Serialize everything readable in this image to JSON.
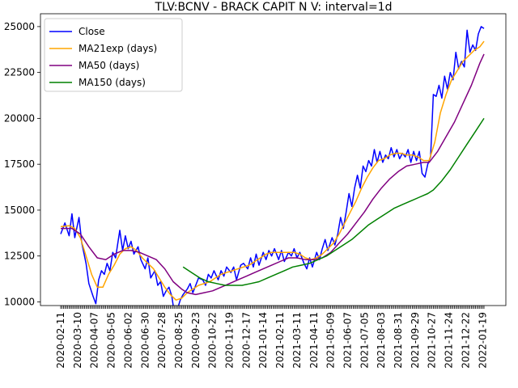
{
  "chart_data": {
    "type": "line",
    "title": "TLV:BCNV - BRACK CAPIT N V: interval=1d",
    "xlabel": "",
    "ylabel": "",
    "ylim": [
      9800,
      25700
    ],
    "grid": false,
    "legend_position": "top-left",
    "y_ticks": [
      {
        "value": 10000,
        "label": "10000"
      },
      {
        "value": 12500,
        "label": "12500"
      },
      {
        "value": 15000,
        "label": "15000"
      },
      {
        "value": 17500,
        "label": "17500"
      },
      {
        "value": 20000,
        "label": "20000"
      },
      {
        "value": 22500,
        "label": "22500"
      },
      {
        "value": 25000,
        "label": "25000"
      }
    ],
    "x_tick_labels": [
      "2020-02-11",
      "2020-03-10",
      "2020-04-07",
      "2020-05-05",
      "2020-06-02",
      "2020-06-30",
      "2020-07-28",
      "2020-08-25",
      "2020-09-23",
      "2020-10-22",
      "2020-11-19",
      "2020-12-17",
      "2021-01-14",
      "2021-02-11",
      "2021-03-11",
      "2021-04-11",
      "2021-05-09",
      "2021-06-07",
      "2021-07-05",
      "2021-08-03",
      "2021-08-31",
      "2021-09-29",
      "2021-10-27",
      "2021-11-24",
      "2021-12-22",
      "2022-01-19"
    ],
    "series": [
      {
        "name": "Close",
        "color": "#0000ff",
        "points": [
          [
            0,
            13700
          ],
          [
            3,
            14300
          ],
          [
            6,
            13600
          ],
          [
            8,
            14800
          ],
          [
            10,
            13500
          ],
          [
            13,
            14600
          ],
          [
            15,
            13200
          ],
          [
            18,
            12100
          ],
          [
            20,
            11000
          ],
          [
            23,
            10300
          ],
          [
            25,
            9900
          ],
          [
            27,
            11200
          ],
          [
            29,
            11700
          ],
          [
            31,
            11500
          ],
          [
            33,
            12100
          ],
          [
            35,
            11700
          ],
          [
            37,
            12700
          ],
          [
            39,
            12400
          ],
          [
            42,
            13900
          ],
          [
            44,
            12800
          ],
          [
            46,
            13600
          ],
          [
            48,
            12900
          ],
          [
            50,
            13300
          ],
          [
            52,
            12600
          ],
          [
            55,
            13000
          ],
          [
            57,
            12300
          ],
          [
            60,
            11800
          ],
          [
            62,
            12400
          ],
          [
            64,
            11300
          ],
          [
            67,
            11700
          ],
          [
            69,
            10900
          ],
          [
            71,
            11100
          ],
          [
            73,
            10300
          ],
          [
            75,
            10600
          ],
          [
            77,
            10800
          ],
          [
            79,
            10300
          ],
          [
            81,
            9300
          ],
          [
            83,
            9600
          ],
          [
            85,
            10100
          ],
          [
            87,
            10400
          ],
          [
            90,
            10700
          ],
          [
            92,
            11000
          ],
          [
            94,
            10500
          ],
          [
            96,
            10900
          ],
          [
            98,
            11300
          ],
          [
            101,
            11200
          ],
          [
            103,
            10900
          ],
          [
            105,
            11500
          ],
          [
            107,
            11300
          ],
          [
            109,
            11700
          ],
          [
            112,
            11200
          ],
          [
            114,
            11700
          ],
          [
            116,
            11400
          ],
          [
            118,
            11900
          ],
          [
            121,
            11600
          ],
          [
            123,
            11900
          ],
          [
            125,
            11200
          ],
          [
            128,
            12000
          ],
          [
            130,
            12100
          ],
          [
            133,
            11800
          ],
          [
            135,
            12400
          ],
          [
            137,
            11900
          ],
          [
            139,
            12600
          ],
          [
            141,
            12000
          ],
          [
            144,
            12700
          ],
          [
            146,
            12300
          ],
          [
            148,
            12800
          ],
          [
            150,
            12500
          ],
          [
            152,
            12900
          ],
          [
            155,
            12300
          ],
          [
            157,
            12800
          ],
          [
            159,
            12200
          ],
          [
            162,
            12700
          ],
          [
            164,
            12500
          ],
          [
            166,
            12900
          ],
          [
            168,
            12400
          ],
          [
            170,
            12700
          ],
          [
            173,
            12100
          ],
          [
            175,
            11800
          ],
          [
            177,
            12400
          ],
          [
            179,
            11900
          ],
          [
            182,
            12700
          ],
          [
            184,
            12300
          ],
          [
            186,
            12900
          ],
          [
            188,
            13400
          ],
          [
            190,
            12800
          ],
          [
            193,
            13500
          ],
          [
            195,
            13100
          ],
          [
            197,
            13700
          ],
          [
            199,
            14600
          ],
          [
            201,
            14000
          ],
          [
            203,
            14900
          ],
          [
            205,
            15900
          ],
          [
            207,
            15200
          ],
          [
            209,
            16200
          ],
          [
            211,
            16900
          ],
          [
            213,
            16200
          ],
          [
            215,
            17400
          ],
          [
            217,
            17100
          ],
          [
            219,
            17700
          ],
          [
            221,
            17400
          ],
          [
            223,
            18300
          ],
          [
            225,
            17600
          ],
          [
            227,
            18200
          ],
          [
            229,
            17600
          ],
          [
            231,
            18000
          ],
          [
            233,
            17800
          ],
          [
            235,
            18400
          ],
          [
            237,
            17900
          ],
          [
            239,
            18300
          ],
          [
            241,
            17800
          ],
          [
            243,
            18100
          ],
          [
            245,
            17900
          ],
          [
            247,
            18300
          ],
          [
            249,
            17600
          ],
          [
            251,
            18200
          ],
          [
            253,
            17700
          ],
          [
            255,
            18200
          ],
          [
            257,
            17000
          ],
          [
            259,
            16800
          ],
          [
            261,
            17500
          ],
          [
            263,
            17900
          ],
          [
            265,
            21300
          ],
          [
            267,
            21200
          ],
          [
            269,
            21800
          ],
          [
            271,
            21100
          ],
          [
            273,
            22300
          ],
          [
            275,
            21600
          ],
          [
            277,
            22500
          ],
          [
            279,
            22100
          ],
          [
            281,
            23600
          ],
          [
            283,
            22700
          ],
          [
            285,
            23100
          ],
          [
            287,
            22800
          ],
          [
            289,
            24800
          ],
          [
            291,
            23600
          ],
          [
            293,
            24000
          ],
          [
            295,
            23700
          ],
          [
            297,
            24600
          ],
          [
            299,
            25000
          ],
          [
            301,
            24900
          ]
        ]
      },
      {
        "name": "MA21exp (days)",
        "color": "#ffa500",
        "points": [
          [
            0,
            14100
          ],
          [
            6,
            14150
          ],
          [
            10,
            14000
          ],
          [
            14,
            13500
          ],
          [
            18,
            12500
          ],
          [
            22,
            11500
          ],
          [
            26,
            10800
          ],
          [
            30,
            10800
          ],
          [
            34,
            11500
          ],
          [
            38,
            12000
          ],
          [
            42,
            12600
          ],
          [
            46,
            12900
          ],
          [
            50,
            13000
          ],
          [
            54,
            12800
          ],
          [
            58,
            12400
          ],
          [
            62,
            12100
          ],
          [
            66,
            11800
          ],
          [
            70,
            11300
          ],
          [
            74,
            10800
          ],
          [
            78,
            10400
          ],
          [
            82,
            10100
          ],
          [
            86,
            10200
          ],
          [
            90,
            10500
          ],
          [
            94,
            10700
          ],
          [
            98,
            10900
          ],
          [
            102,
            11000
          ],
          [
            106,
            11100
          ],
          [
            110,
            11300
          ],
          [
            114,
            11500
          ],
          [
            118,
            11600
          ],
          [
            122,
            11700
          ],
          [
            126,
            11800
          ],
          [
            130,
            11900
          ],
          [
            134,
            12000
          ],
          [
            138,
            12200
          ],
          [
            142,
            12400
          ],
          [
            146,
            12600
          ],
          [
            150,
            12700
          ],
          [
            154,
            12700
          ],
          [
            158,
            12700
          ],
          [
            162,
            12700
          ],
          [
            166,
            12700
          ],
          [
            170,
            12600
          ],
          [
            174,
            12400
          ],
          [
            178,
            12300
          ],
          [
            182,
            12400
          ],
          [
            186,
            12600
          ],
          [
            190,
            12900
          ],
          [
            194,
            13200
          ],
          [
            198,
            13700
          ],
          [
            202,
            14300
          ],
          [
            206,
            14900
          ],
          [
            210,
            15500
          ],
          [
            214,
            16200
          ],
          [
            218,
            16800
          ],
          [
            222,
            17300
          ],
          [
            226,
            17700
          ],
          [
            230,
            17800
          ],
          [
            234,
            18000
          ],
          [
            238,
            18100
          ],
          [
            242,
            18100
          ],
          [
            246,
            18000
          ],
          [
            250,
            18000
          ],
          [
            254,
            17900
          ],
          [
            258,
            17700
          ],
          [
            262,
            17700
          ],
          [
            266,
            18700
          ],
          [
            270,
            20300
          ],
          [
            274,
            21300
          ],
          [
            278,
            22100
          ],
          [
            282,
            22600
          ],
          [
            286,
            23100
          ],
          [
            290,
            23400
          ],
          [
            294,
            23700
          ],
          [
            298,
            23900
          ],
          [
            301,
            24200
          ]
        ]
      },
      {
        "name": "MA50 (days)",
        "color": "#800080",
        "points": [
          [
            0,
            14000
          ],
          [
            8,
            14000
          ],
          [
            14,
            13700
          ],
          [
            20,
            13000
          ],
          [
            26,
            12400
          ],
          [
            32,
            12300
          ],
          [
            38,
            12600
          ],
          [
            44,
            12800
          ],
          [
            50,
            12800
          ],
          [
            56,
            12700
          ],
          [
            62,
            12500
          ],
          [
            68,
            12300
          ],
          [
            74,
            11800
          ],
          [
            80,
            11100
          ],
          [
            86,
            10700
          ],
          [
            90,
            10500
          ],
          [
            96,
            10400
          ],
          [
            102,
            10500
          ],
          [
            108,
            10600
          ],
          [
            114,
            10800
          ],
          [
            120,
            11000
          ],
          [
            126,
            11200
          ],
          [
            132,
            11400
          ],
          [
            138,
            11600
          ],
          [
            144,
            11800
          ],
          [
            150,
            12000
          ],
          [
            156,
            12200
          ],
          [
            162,
            12400
          ],
          [
            168,
            12400
          ],
          [
            174,
            12300
          ],
          [
            180,
            12300
          ],
          [
            186,
            12400
          ],
          [
            192,
            12700
          ],
          [
            198,
            13200
          ],
          [
            204,
            13700
          ],
          [
            210,
            14300
          ],
          [
            216,
            14900
          ],
          [
            222,
            15600
          ],
          [
            228,
            16200
          ],
          [
            234,
            16700
          ],
          [
            240,
            17100
          ],
          [
            246,
            17400
          ],
          [
            252,
            17500
          ],
          [
            258,
            17600
          ],
          [
            262,
            17600
          ],
          [
            268,
            18200
          ],
          [
            274,
            19000
          ],
          [
            280,
            19800
          ],
          [
            286,
            20800
          ],
          [
            292,
            21800
          ],
          [
            298,
            23000
          ],
          [
            301,
            23500
          ]
        ]
      },
      {
        "name": "MA150 (days)",
        "color": "#008000",
        "points": [
          [
            87,
            11900
          ],
          [
            93,
            11600
          ],
          [
            99,
            11300
          ],
          [
            105,
            11100
          ],
          [
            111,
            11000
          ],
          [
            117,
            10900
          ],
          [
            123,
            10900
          ],
          [
            129,
            10900
          ],
          [
            135,
            11000
          ],
          [
            141,
            11100
          ],
          [
            147,
            11300
          ],
          [
            153,
            11500
          ],
          [
            159,
            11700
          ],
          [
            165,
            11900
          ],
          [
            171,
            12000
          ],
          [
            177,
            12100
          ],
          [
            183,
            12300
          ],
          [
            189,
            12500
          ],
          [
            195,
            12800
          ],
          [
            201,
            13100
          ],
          [
            207,
            13400
          ],
          [
            213,
            13800
          ],
          [
            219,
            14200
          ],
          [
            225,
            14500
          ],
          [
            231,
            14800
          ],
          [
            237,
            15100
          ],
          [
            243,
            15300
          ],
          [
            249,
            15500
          ],
          [
            255,
            15700
          ],
          [
            261,
            15900
          ],
          [
            265,
            16100
          ],
          [
            271,
            16600
          ],
          [
            277,
            17200
          ],
          [
            283,
            17900
          ],
          [
            289,
            18600
          ],
          [
            295,
            19300
          ],
          [
            301,
            20000
          ]
        ]
      }
    ]
  }
}
